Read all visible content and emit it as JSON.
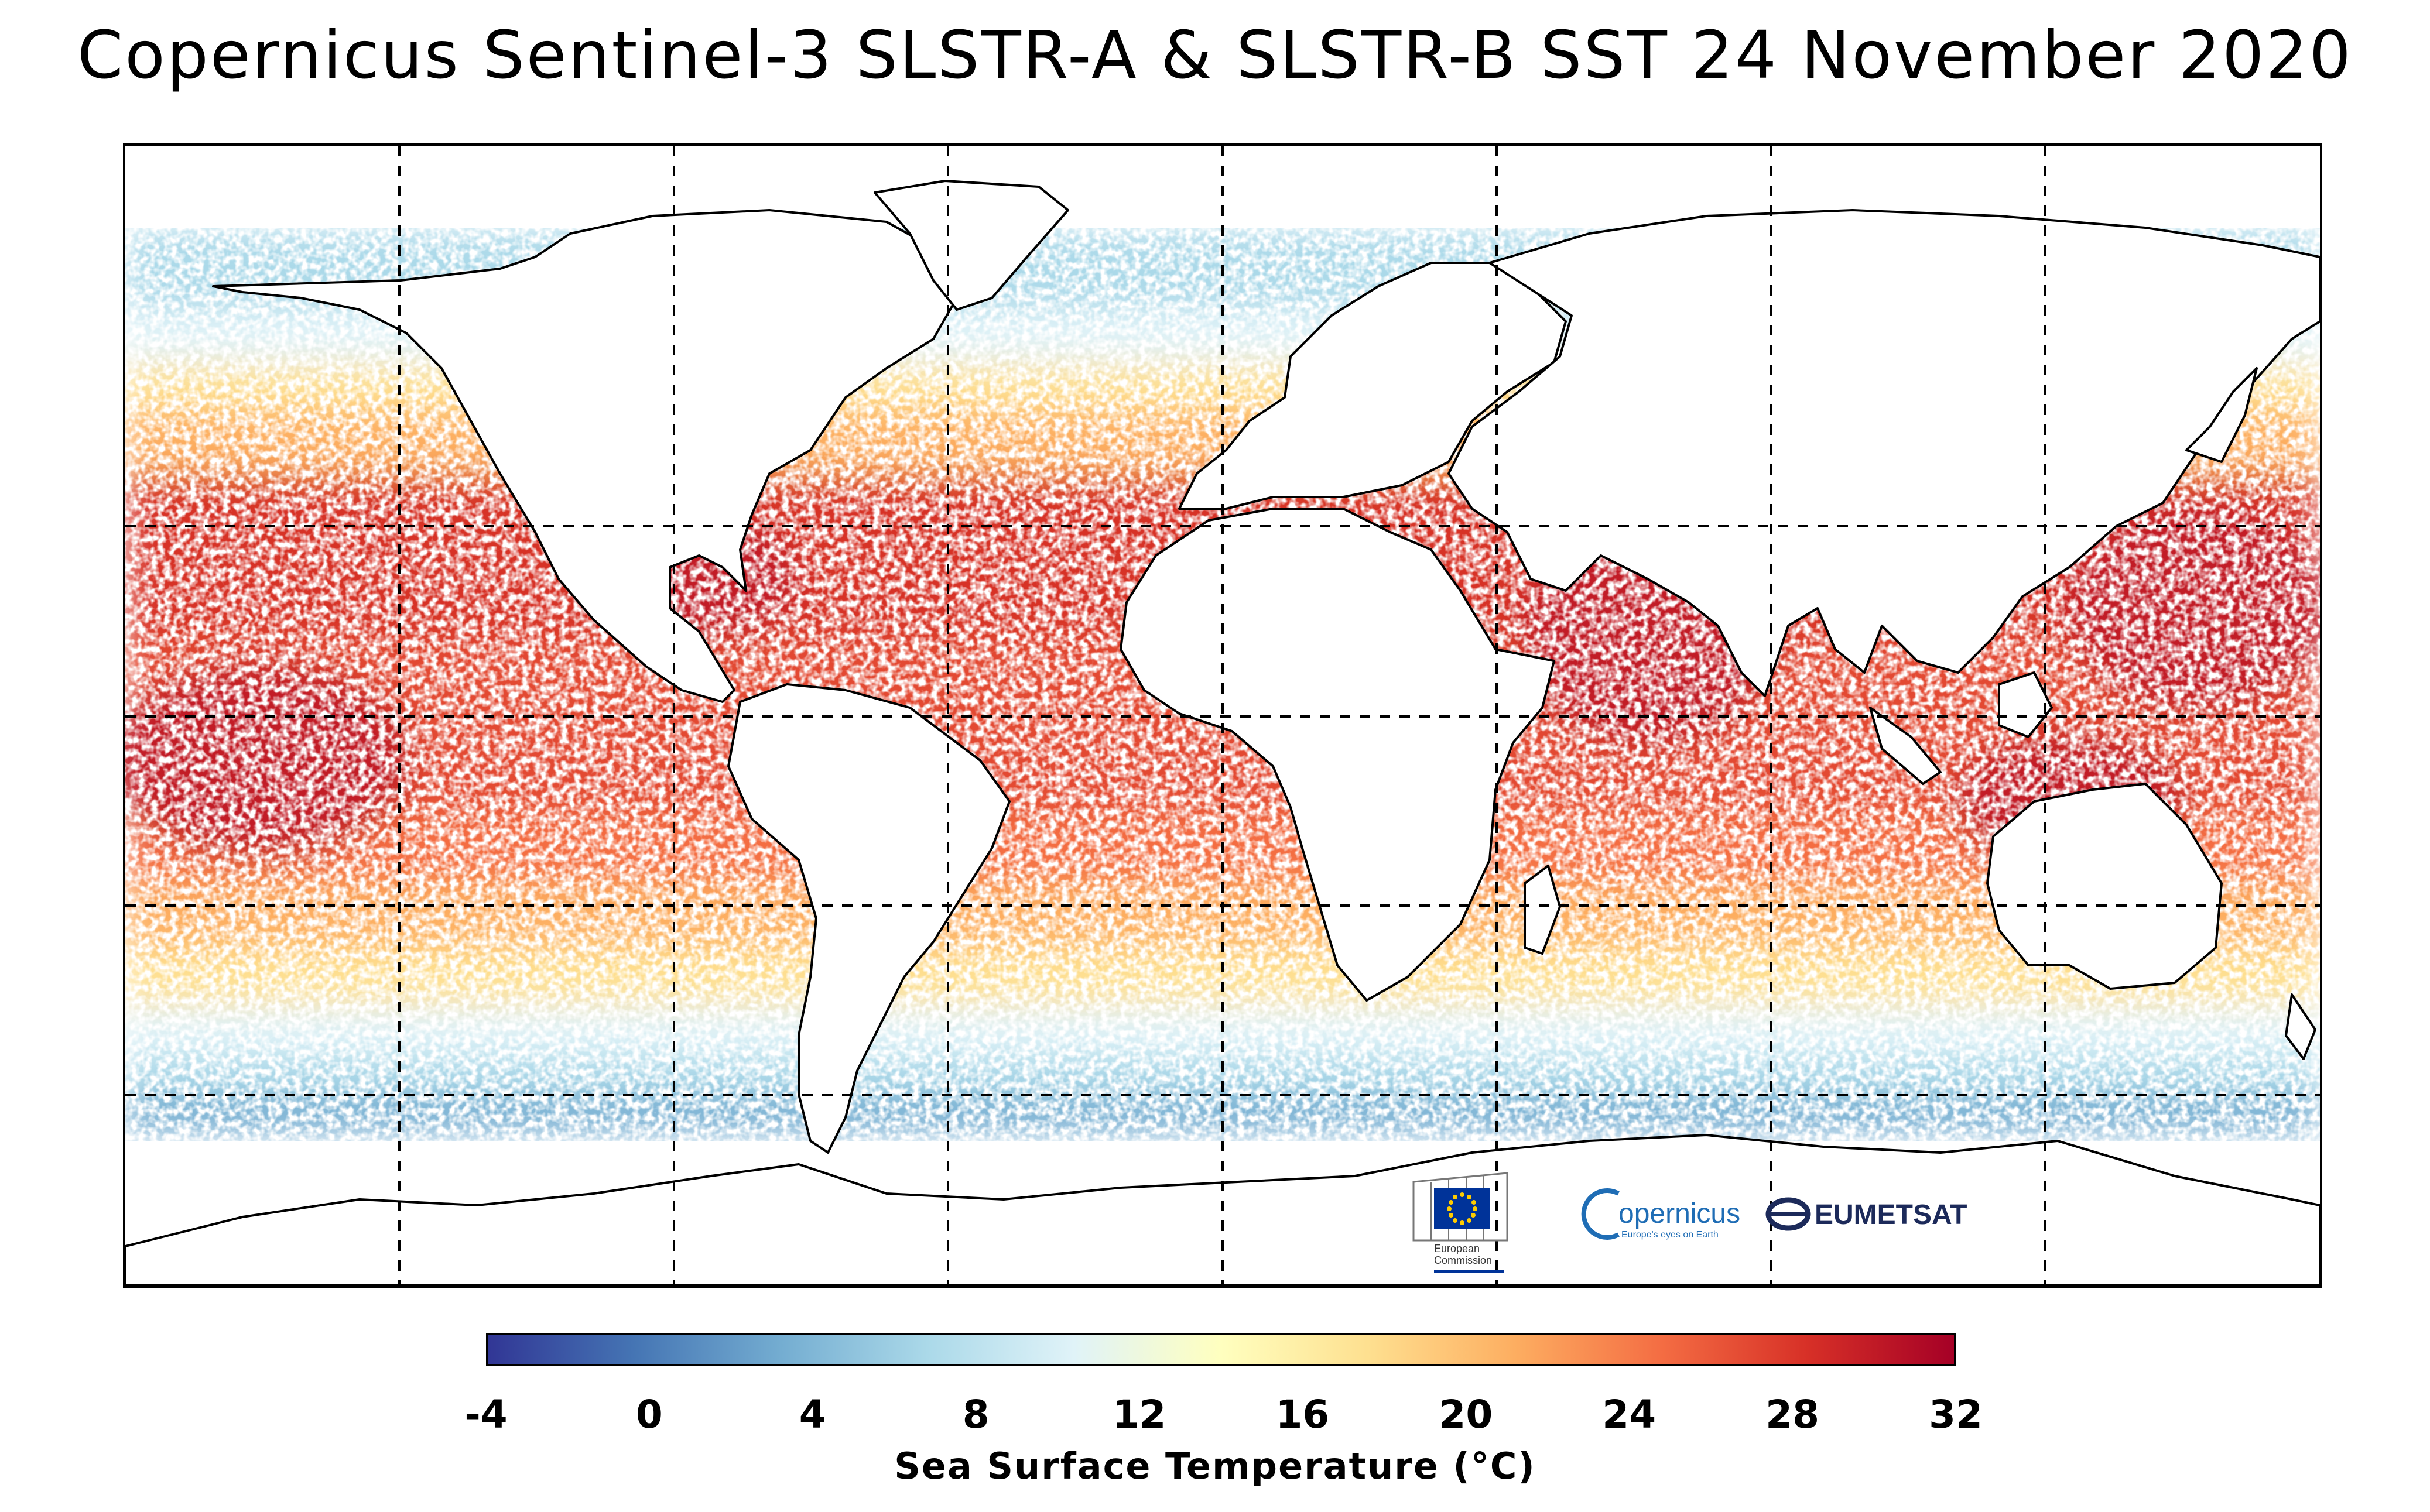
{
  "title": "Copernicus Sentinel-3 SLSTR-A & SLSTR-B SST 24 November 2020",
  "map": {
    "projection": "equirectangular",
    "lon_range": [
      -180,
      180
    ],
    "lat_range": [
      -90,
      90
    ],
    "gridlines": "dashed, every 45° longitude and 30° latitude"
  },
  "colorbar": {
    "label": "Sea Surface Temperature (°C)",
    "min": -4,
    "max": 32,
    "ticks": [
      "-4",
      "0",
      "4",
      "8",
      "12",
      "16",
      "20",
      "24",
      "28",
      "32"
    ],
    "stops": [
      "#313695",
      "#4575b4",
      "#74add1",
      "#abd9e9",
      "#e0f3f8",
      "#ffffbf",
      "#fee090",
      "#fdae61",
      "#f46d43",
      "#d73027",
      "#a50026"
    ]
  },
  "logos": {
    "ec_line1": "European",
    "ec_line2": "Commission",
    "copernicus": "opernicus",
    "copernicus_tagline": "Europe's eyes on Earth",
    "eumetsat": "EUMETSAT"
  },
  "colors": {
    "ec_blue": "#003399",
    "ec_star": "#ffcc00",
    "copernicus_blue": "#1f6db5",
    "eumetsat_navy": "#1c2a5a"
  }
}
